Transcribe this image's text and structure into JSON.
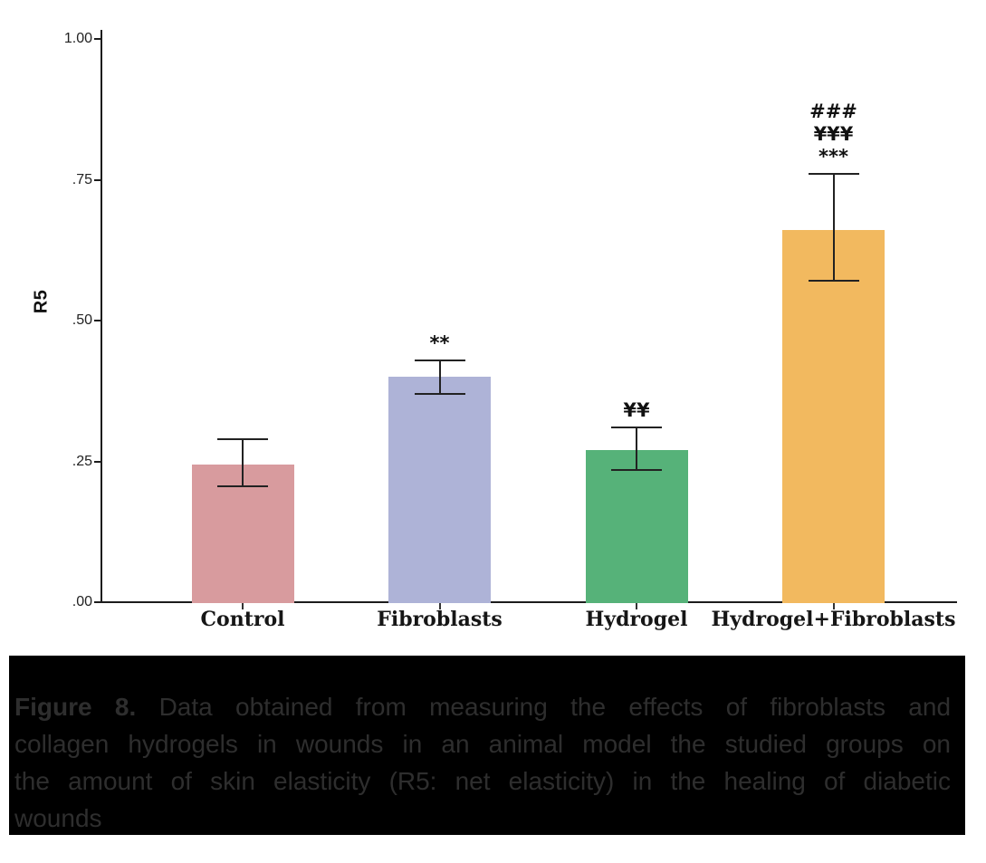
{
  "figure": {
    "background": "#ffffff",
    "caption": {
      "prefix": "Figure 8.",
      "lines": [
        "Data obtained from measuring the effects of fibroblasts and",
        "collagen hydrogels in wounds in an animal model the studied groups on",
        "the amount of skin elasticity (R5: net elasticity) in the healing of diabetic",
        "wounds"
      ],
      "background_color": "#000000",
      "text_color": "#2e2e2e"
    }
  },
  "chart_data": {
    "type": "bar",
    "title": "",
    "xlabel": "",
    "ylabel": "R5",
    "ylim": [
      0,
      1.0
    ],
    "grid": false,
    "legend": null,
    "yticks": [
      {
        "label": "1.00",
        "value": 1.0
      },
      {
        "label": ".75",
        "value": 0.75
      },
      {
        "label": ".50",
        "value": 0.5
      },
      {
        "label": ".25",
        "value": 0.25
      },
      {
        "label": ".00",
        "value": 0.0
      }
    ],
    "categories": [
      "Control",
      "Fibroblasts",
      "Hydrogel",
      "Hydrogel+Fibroblasts"
    ],
    "values": [
      0.245,
      0.4,
      0.27,
      0.66
    ],
    "error_upper": [
      0.29,
      0.43,
      0.31,
      0.76
    ],
    "error_lower": [
      0.205,
      0.37,
      0.235,
      0.57
    ],
    "bar_colors": [
      "#d89b9e",
      "#aeb3d7",
      "#56b279",
      "#f2b95f"
    ],
    "error_bar_color": "#222222",
    "annotations": [
      [],
      [
        "**"
      ],
      [
        "¥¥"
      ],
      [
        "###",
        "¥¥¥",
        "***"
      ]
    ]
  }
}
